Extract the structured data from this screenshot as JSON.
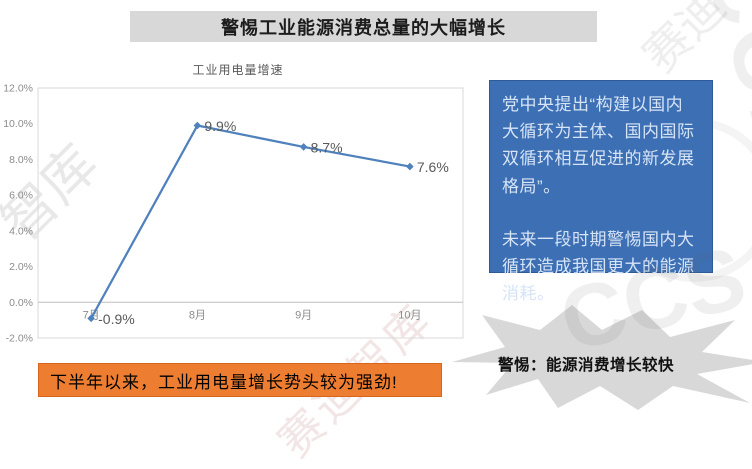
{
  "title_bar": {
    "text": "警惕工业能源消费总量的大幅增长"
  },
  "chart_data": {
    "type": "line",
    "title": "工业用电量增速",
    "categories": [
      "7月",
      "8月",
      "9月",
      "10月"
    ],
    "values": [
      -0.9,
      9.9,
      8.7,
      7.6
    ],
    "data_labels": [
      "-0.9%",
      "9.9%",
      "8.7%",
      "7.6%"
    ],
    "ylim": [
      -2,
      12
    ],
    "ytick_step": 2,
    "ytick_labels": [
      "12.0%",
      "10.0%",
      "8.0%",
      "6.0%",
      "4.0%",
      "2.0%",
      "0.0%",
      "-2.0%"
    ],
    "unit": "%",
    "grid": false,
    "legend": "none",
    "line_color": "#4F81BD",
    "axis_label_color": "#8C8C8C",
    "data_label_color": "#595959"
  },
  "callout": {
    "paragraph1": "党中央提出“构建以国内大循环为主体、国内国际双循环相互促进的新发展格局”。",
    "paragraph2": "未来一段时期警惕国内大循环造成我国更大的能源消耗。",
    "bg_color": "#3D6FB5",
    "text_color": "#D6E4F6"
  },
  "banner": {
    "text": "下半年以来，工业用电量增长势头较为强劲!",
    "bg_color": "#ED7D31",
    "text_color": "#FFF6EE"
  },
  "burst": {
    "text": "警惕：能源消费增长较快",
    "fill_color": "#D8D8D8",
    "text_color": "#111111"
  },
  "watermarks": {
    "brand_short": "智库",
    "brand_text": "赛迪智库",
    "brand_top": "赛迪",
    "logo_text": "CCiD",
    "logo_text2": "CCS"
  }
}
